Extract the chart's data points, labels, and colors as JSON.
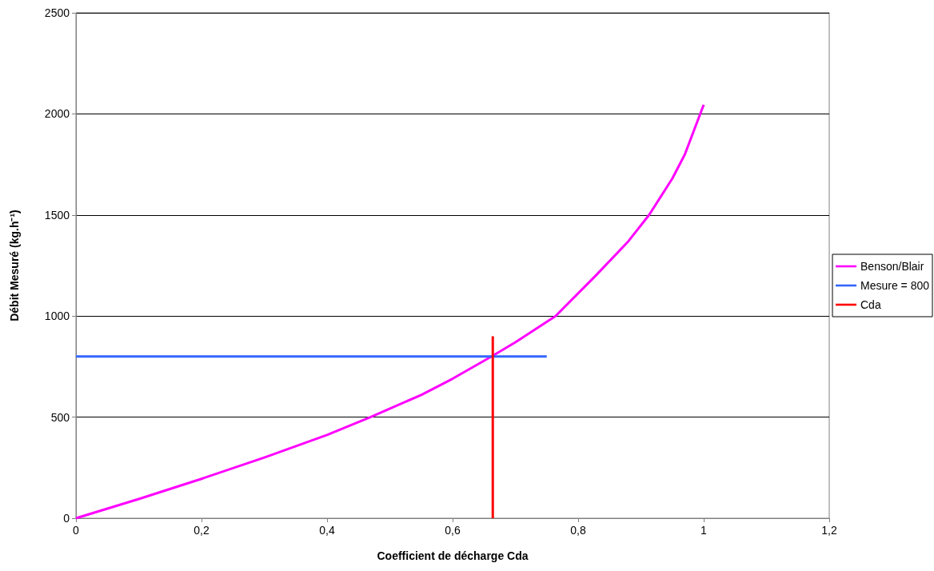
{
  "chart_data": {
    "type": "line",
    "xlabel": "Coefficient de décharge Cda",
    "ylabel": "Débit Mesuré (kg.h⁻¹)",
    "xlim": [
      0,
      1.2
    ],
    "xticks": [
      {
        "value": 0,
        "label": "0"
      },
      {
        "value": 0.2,
        "label": "0,2"
      },
      {
        "value": 0.4,
        "label": "0,4"
      },
      {
        "value": 0.6,
        "label": "0,6"
      },
      {
        "value": 0.8,
        "label": "0,8"
      },
      {
        "value": 1,
        "label": "1"
      },
      {
        "value": 1.2,
        "label": "1,2"
      }
    ],
    "ylim": [
      0,
      2500
    ],
    "yticks": [
      0,
      500,
      1000,
      1500,
      2000,
      2500
    ],
    "grid": "y",
    "legend": "right",
    "marker": "none",
    "line_style": "solid",
    "series": [
      {
        "name": "Benson/Blair",
        "color": "#ff00ff",
        "x": [
          0,
          0.1,
          0.2,
          0.3,
          0.4,
          0.469,
          0.55,
          0.6,
          0.662,
          0.7,
          0.764,
          0.828,
          0.88,
          0.913,
          0.95,
          0.97,
          1.0
        ],
        "values": [
          0,
          95,
          195,
          300,
          412,
          500,
          610,
          690,
          800,
          870,
          1000,
          1200,
          1370,
          1500,
          1680,
          1800,
          2045
        ]
      },
      {
        "name": "Mesure = 800",
        "color": "#3366ff",
        "x": [
          0,
          0.75
        ],
        "values": [
          800,
          800
        ]
      },
      {
        "name": "Cda",
        "color": "#ff0000",
        "x": [
          0.664,
          0.664
        ],
        "values": [
          0,
          900
        ]
      }
    ]
  }
}
